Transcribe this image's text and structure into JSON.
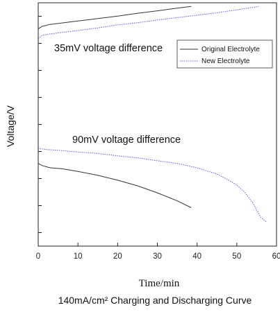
{
  "chart_data": {
    "type": "line",
    "title": "",
    "caption": "140mA/cm² Charging and Discharging Curve",
    "xlabel": "Time/min",
    "ylabel": "Voltage/V",
    "xlim": [
      0,
      60
    ],
    "x_ticks": [
      0,
      10,
      20,
      30,
      40,
      50,
      60
    ],
    "y_tick_count": 9,
    "y_tick_labels_visible": false,
    "ylim": [
      0,
      1
    ],
    "grid": false,
    "legend_position": "upper right",
    "legend": [
      {
        "name": "Original Electrolyte",
        "color": "#333333",
        "style": "solid"
      },
      {
        "name": "New Electrolyte",
        "color": "#5555dd",
        "style": "dotted"
      }
    ],
    "annotations": [
      {
        "text": "35mV voltage difference"
      },
      {
        "text": "90mV voltage difference"
      }
    ],
    "series": [
      {
        "name": "Original Electrolyte",
        "phase": "charge",
        "x": [
          0,
          1,
          3,
          6,
          10,
          15,
          20,
          25,
          30,
          35,
          38.5
        ],
        "y": [
          0.893,
          0.903,
          0.911,
          0.917,
          0.925,
          0.935,
          0.945,
          0.957,
          0.967,
          0.978,
          0.985
        ]
      },
      {
        "name": "New Electrolyte",
        "phase": "charge",
        "x": [
          0,
          1,
          3,
          6,
          10,
          15,
          20,
          25,
          30,
          35,
          40,
          45,
          50,
          55.5
        ],
        "y": [
          0.852,
          0.866,
          0.872,
          0.878,
          0.886,
          0.897,
          0.909,
          0.918,
          0.929,
          0.939,
          0.949,
          0.959,
          0.971,
          0.985
        ]
      },
      {
        "name": "Original Electrolyte",
        "phase": "discharge",
        "x": [
          0,
          1,
          3,
          6,
          10,
          15,
          20,
          25,
          30,
          35,
          38.5
        ],
        "y": [
          0.34,
          0.331,
          0.322,
          0.318,
          0.307,
          0.291,
          0.271,
          0.248,
          0.219,
          0.186,
          0.158
        ]
      },
      {
        "name": "New Electrolyte",
        "phase": "discharge",
        "x": [
          0,
          2,
          5,
          10,
          15,
          20,
          25,
          30,
          35,
          40,
          45,
          48,
          50,
          52,
          54,
          56,
          57.5
        ],
        "y": [
          0.402,
          0.397,
          0.394,
          0.387,
          0.381,
          0.371,
          0.363,
          0.351,
          0.34,
          0.322,
          0.296,
          0.271,
          0.251,
          0.221,
          0.178,
          0.119,
          0.099
        ]
      }
    ]
  }
}
